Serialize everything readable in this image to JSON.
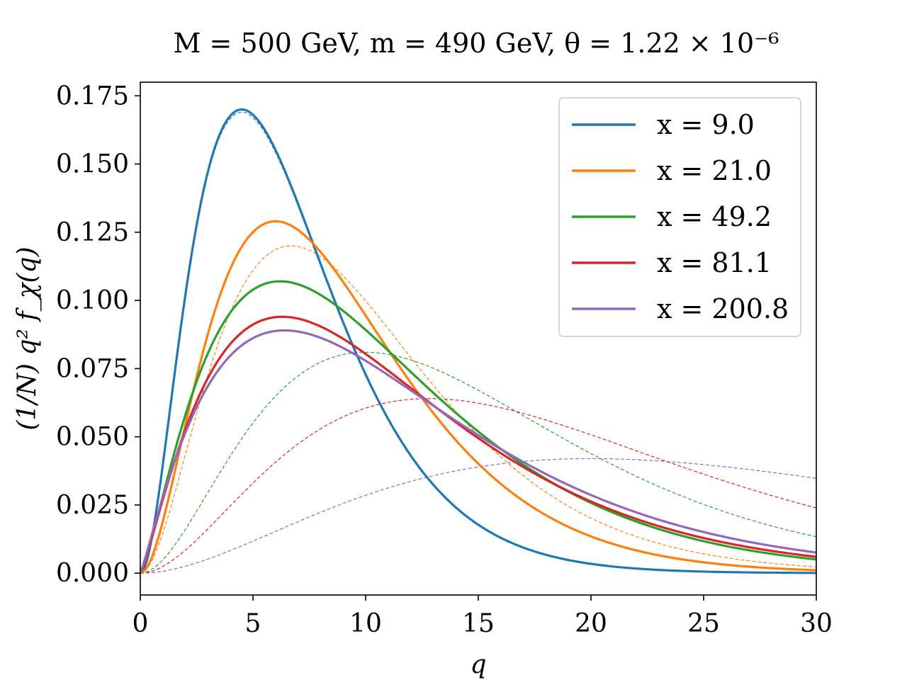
{
  "chart_data": {
    "type": "line",
    "title": "M = 500 GeV, m = 490 GeV, θ = 1.22 × 10⁻⁶",
    "xlabel": "q",
    "ylabel": "(1/N) q² f_χ(q)",
    "xlim": [
      0,
      30
    ],
    "ylim": [
      -0.008,
      0.18
    ],
    "xticks": [
      0,
      5,
      10,
      15,
      20,
      25,
      30
    ],
    "yticks": [
      0.0,
      0.025,
      0.05,
      0.075,
      0.1,
      0.125,
      0.15,
      0.175
    ],
    "ytick_labels": [
      "0.000",
      "0.025",
      "0.050",
      "0.075",
      "0.100",
      "0.125",
      "0.150",
      "0.175"
    ],
    "xtick_labels": [
      "0",
      "5",
      "10",
      "15",
      "20",
      "25",
      "30"
    ],
    "grid": false,
    "legend_position": "top-right",
    "series": [
      {
        "name": "x = 9.0",
        "color": "#1f77b4",
        "style": "solid",
        "peak_x": 4.5,
        "peak_y": 0.17,
        "shape": 2.0,
        "reference": {
          "style": "dashed",
          "peak_x": 4.5,
          "peak_y": 0.169,
          "shape": 2.0
        }
      },
      {
        "name": "x = 21.0",
        "color": "#ff7f0e",
        "style": "solid",
        "peak_x": 6.0,
        "peak_y": 0.129,
        "shape": 2.0,
        "reference": {
          "style": "dashed",
          "peak_x": 6.7,
          "peak_y": 0.12,
          "shape": 2.0
        }
      },
      {
        "name": "x = 49.2",
        "color": "#2ca02c",
        "style": "solid",
        "peak_x": 6.2,
        "peak_y": 0.107,
        "shape": 1.35,
        "reference": {
          "style": "dashed",
          "peak_x": 10.0,
          "peak_y": 0.081,
          "shape": 2.0
        }
      },
      {
        "name": "x = 81.1",
        "color": "#d62728",
        "style": "solid",
        "peak_x": 6.3,
        "peak_y": 0.094,
        "shape": 1.25,
        "reference": {
          "style": "dashed",
          "peak_x": 12.8,
          "peak_y": 0.064,
          "shape": 2.0
        }
      },
      {
        "name": "x = 200.8",
        "color": "#9467bd",
        "style": "solid",
        "peak_x": 6.4,
        "peak_y": 0.089,
        "shape": 1.15,
        "reference": {
          "style": "dashed",
          "peak_x": 20.0,
          "peak_y": 0.042,
          "shape": 2.0
        }
      }
    ]
  }
}
